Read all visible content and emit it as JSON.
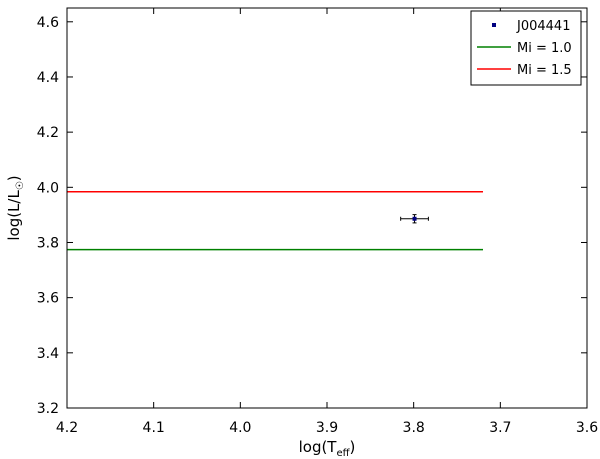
{
  "chart_data": {
    "type": "line",
    "title": "",
    "xlabel": {
      "main": "log(T",
      "sub": "eff",
      "close": ")"
    },
    "ylabel": {
      "main": "log(L/L",
      "sub": "☉",
      "close": ")"
    },
    "xlim": [
      4.2,
      3.6
    ],
    "ylim": [
      3.2,
      4.65
    ],
    "x_inverted": true,
    "xticks": [
      4.2,
      4.1,
      4.0,
      3.9,
      3.8,
      3.7,
      3.6
    ],
    "xtick_labels": [
      "4.2",
      "4.1",
      "4.0",
      "3.9",
      "3.8",
      "3.7",
      "3.6"
    ],
    "yticks": [
      3.2,
      3.4,
      3.6,
      3.8,
      4.0,
      4.2,
      4.4,
      4.6
    ],
    "ytick_labels": [
      "3.2",
      "3.4",
      "3.6",
      "3.8",
      "4.0",
      "4.2",
      "4.4",
      "4.6"
    ],
    "grid": false,
    "legend_placement": "top-right",
    "series": [
      {
        "name": "J004441",
        "kind": "errorbar",
        "color": "#000080",
        "points": [
          {
            "x": 3.799,
            "y": 3.886,
            "xerr": 0.016,
            "yerr": 0.015
          }
        ]
      },
      {
        "name": "Mi = 1.0",
        "kind": "line",
        "color": "#008000",
        "x": [
          4.2,
          3.72
        ],
        "y": [
          3.774,
          3.774
        ]
      },
      {
        "name": "Mi = 1.5",
        "kind": "line",
        "color": "#ff0000",
        "x": [
          4.2,
          3.72
        ],
        "y": [
          3.984,
          3.984
        ]
      }
    ]
  }
}
